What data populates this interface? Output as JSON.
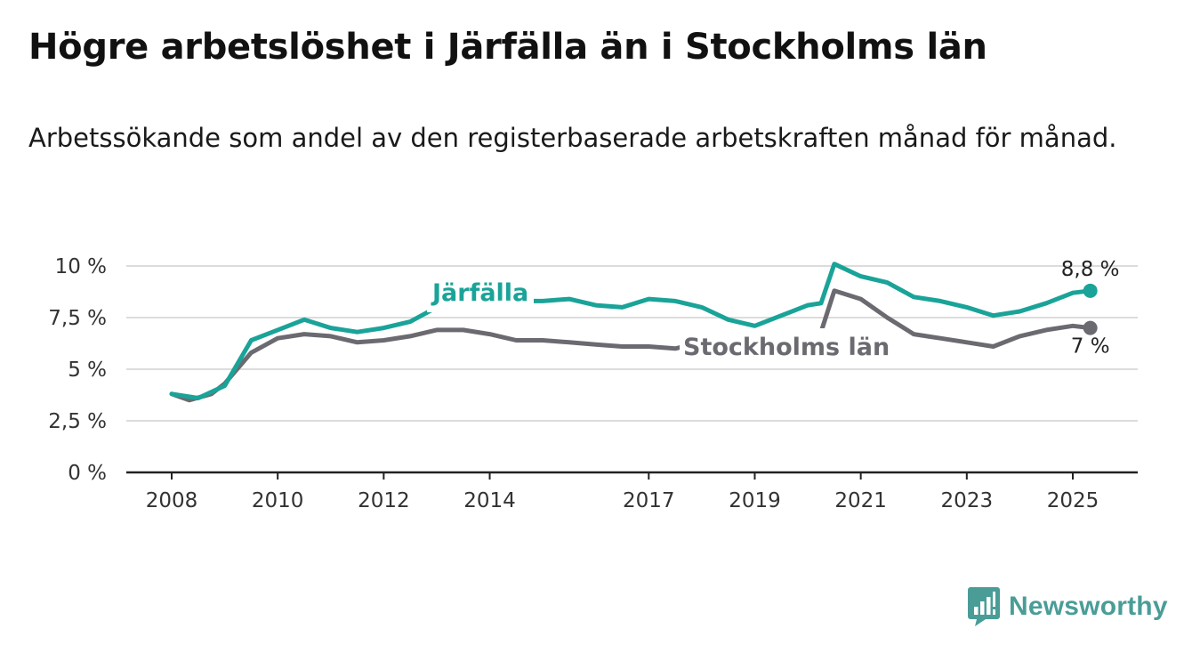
{
  "header": {
    "title": "Högre arbetslöshet i Järfälla än i Stockholms län",
    "subtitle": "Arbetssökande som andel av den registerbaserade arbetskraften månad för månad."
  },
  "brand": {
    "name": "Newsworthy",
    "color": "#4a9d97",
    "icon": "bar-chart-chat-icon"
  },
  "chart_data": {
    "type": "line",
    "x_ticks": [
      "2008",
      "2010",
      "2012",
      "2014",
      "2017",
      "2019",
      "2021",
      "2023",
      "2025"
    ],
    "y_ticks": [
      "0 %",
      "2,5 %",
      "5 %",
      "7,5 %",
      "10 %"
    ],
    "ylim": [
      0,
      10
    ],
    "grid": true,
    "series": [
      {
        "name": "Järfälla",
        "color": "#1aa398",
        "end_label": "8,8 %",
        "x": [
          2008.0,
          2008.5,
          2009.0,
          2009.5,
          2010.0,
          2010.5,
          2011.0,
          2011.5,
          2012.0,
          2012.5,
          2013.0,
          2013.5,
          2014.0,
          2014.5,
          2015.0,
          2015.5,
          2016.0,
          2016.5,
          2017.0,
          2017.5,
          2018.0,
          2018.5,
          2019.0,
          2019.5,
          2020.0,
          2020.25,
          2020.5,
          2021.0,
          2021.5,
          2022.0,
          2022.5,
          2023.0,
          2023.5,
          2024.0,
          2024.5,
          2025.0,
          2025.33
        ],
        "y": [
          3.8,
          3.6,
          4.2,
          6.4,
          6.9,
          7.4,
          7.0,
          6.8,
          7.0,
          7.3,
          8.0,
          8.3,
          8.2,
          8.3,
          8.3,
          8.4,
          8.1,
          8.0,
          8.4,
          8.3,
          8.0,
          7.4,
          7.1,
          7.6,
          8.1,
          8.2,
          10.1,
          9.5,
          9.2,
          8.5,
          8.3,
          8.0,
          7.6,
          7.8,
          8.2,
          8.7,
          8.8
        ]
      },
      {
        "name": "Stockholms län",
        "color": "#6b6a70",
        "end_label": "7 %",
        "x": [
          2008.0,
          2008.33,
          2008.75,
          2009.0,
          2009.5,
          2010.0,
          2010.5,
          2011.0,
          2011.5,
          2012.0,
          2012.5,
          2013.0,
          2013.5,
          2014.0,
          2014.5,
          2015.0,
          2015.5,
          2016.0,
          2016.5,
          2017.0,
          2017.5,
          2018.0,
          2018.5,
          2019.0,
          2019.5,
          2020.0,
          2020.25,
          2020.5,
          2021.0,
          2021.5,
          2022.0,
          2022.5,
          2023.0,
          2023.5,
          2024.0,
          2024.5,
          2025.0,
          2025.33
        ],
        "y": [
          3.8,
          3.5,
          3.8,
          4.3,
          5.8,
          6.5,
          6.7,
          6.6,
          6.3,
          6.4,
          6.6,
          6.9,
          6.9,
          6.7,
          6.4,
          6.4,
          6.3,
          6.2,
          6.1,
          6.1,
          6.0,
          6.3,
          6.4,
          6.6,
          6.7,
          6.8,
          6.8,
          8.8,
          8.4,
          7.5,
          6.7,
          6.5,
          6.3,
          6.1,
          6.6,
          6.9,
          7.1,
          7.0
        ]
      }
    ]
  }
}
